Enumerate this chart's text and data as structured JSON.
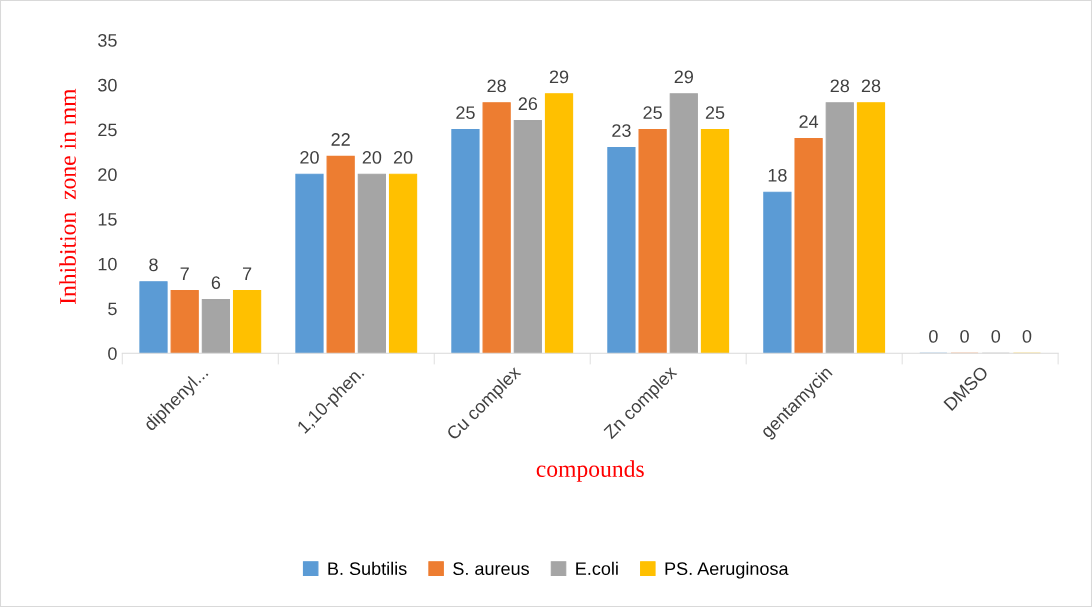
{
  "chart_data": {
    "type": "bar",
    "xlabel": "compounds",
    "ylabel": "Inhibition  zone in mm",
    "categories": [
      "diphenyl...",
      "1,10-phen.",
      "Cu complex",
      "Zn complex",
      "gentamycin",
      "DMSO"
    ],
    "series": [
      {
        "name": "B. Subtilis",
        "color": "#5b9bd5",
        "values": [
          8,
          20,
          25,
          23,
          18,
          0
        ]
      },
      {
        "name": "S. aureus",
        "color": "#ed7d31",
        "values": [
          7,
          22,
          28,
          25,
          24,
          0
        ]
      },
      {
        "name": "E.coli",
        "color": "#a5a5a5",
        "values": [
          6,
          20,
          26,
          29,
          28,
          0
        ]
      },
      {
        "name": "PS. Aeruginosa",
        "color": "#ffc000",
        "values": [
          7,
          20,
          29,
          25,
          28,
          0
        ]
      }
    ],
    "ylim": [
      0,
      35
    ],
    "yticks": [
      0,
      5,
      10,
      15,
      20,
      25,
      30,
      35
    ],
    "grid": false,
    "data_labels": true,
    "legend": "bottom"
  }
}
